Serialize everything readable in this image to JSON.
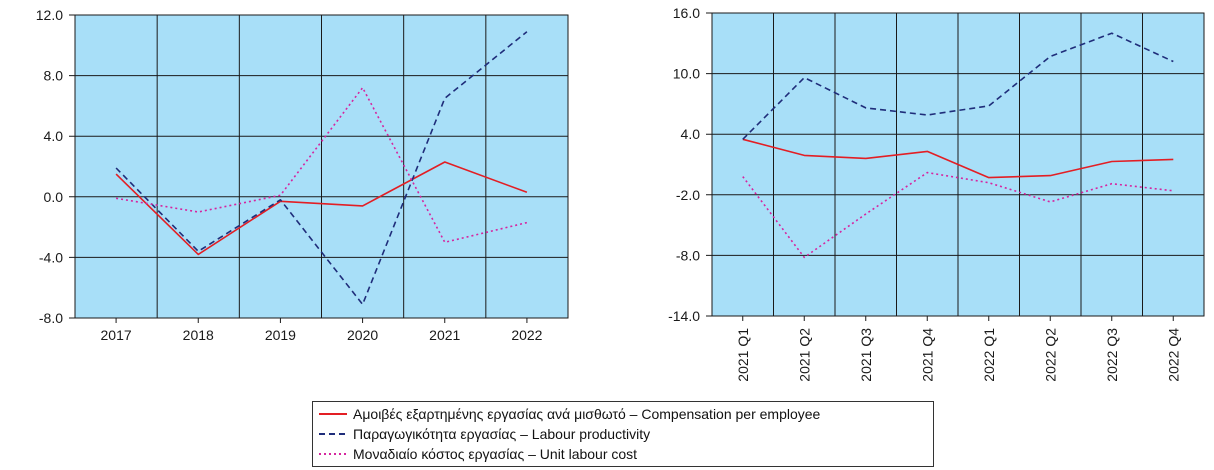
{
  "colors": {
    "plot_bg": "#a8dff8",
    "grid": "#1a1a1a",
    "compensation": "#e31e24",
    "productivity": "#1f2d7a",
    "unit_labour_cost": "#d6249f"
  },
  "chart_data": [
    {
      "type": "line",
      "title": "",
      "xlabel": "",
      "ylabel": "",
      "categories": [
        "2017",
        "2018",
        "2019",
        "2020",
        "2021",
        "2022"
      ],
      "ylim": [
        -8,
        12
      ],
      "yticks": [
        "12.0",
        "8.0",
        "4.0",
        "0.0",
        "-4.0",
        "-8.0"
      ],
      "grid": true,
      "series": [
        {
          "name": "Αμοιβές εξαρτημένης εργασίας ανά μισθωτό – Compensation per employee",
          "style": "solid",
          "values": [
            1.5,
            -3.8,
            -0.3,
            -0.6,
            2.3,
            0.3
          ]
        },
        {
          "name": "Παραγωγικότητα εργασίας – Labour productivity",
          "style": "dashed",
          "values": [
            1.9,
            -3.6,
            -0.2,
            -7.1,
            6.5,
            10.9
          ]
        },
        {
          "name": "Μοναδιαίο κόστος εργασίας – Unit labour cost",
          "style": "dotted",
          "values": [
            -0.1,
            -1.0,
            0.1,
            7.2,
            -3.0,
            -1.7
          ]
        }
      ]
    },
    {
      "type": "line",
      "title": "",
      "xlabel": "",
      "ylabel": "",
      "categories": [
        "2021 Q1",
        "2021 Q2",
        "2021 Q3",
        "2021 Q4",
        "2022 Q1",
        "2022 Q2",
        "2022 Q3",
        "2022 Q4"
      ],
      "ylim": [
        -14,
        16
      ],
      "yticks": [
        "16.0",
        "10.0",
        "4.0",
        "-2.0",
        "-8.0",
        "-14.0"
      ],
      "grid": true,
      "series": [
        {
          "name": "Αμοιβές εξαρτημένης εργασίας ανά μισθωτό – Compensation per employee",
          "style": "solid",
          "values": [
            3.5,
            1.9,
            1.6,
            2.3,
            -0.3,
            -0.1,
            1.3,
            1.5
          ]
        },
        {
          "name": "Παραγωγικότητα εργασίας – Labour productivity",
          "style": "dashed",
          "values": [
            3.5,
            9.6,
            6.6,
            5.9,
            6.8,
            11.7,
            14.0,
            11.2
          ]
        },
        {
          "name": "Μοναδιαίο κόστος εργασίας – Unit labour cost",
          "style": "dotted",
          "values": [
            -0.2,
            -8.2,
            -3.9,
            0.2,
            -0.8,
            -2.7,
            -0.9,
            -1.6
          ]
        }
      ]
    }
  ],
  "legend": {
    "items": [
      {
        "label": "Αμοιβές εξαρτημένης εργασίας ανά μισθωτό – Compensation per employee",
        "style": "solid"
      },
      {
        "label": "Παραγωγικότητα εργασίας – Labour productivity",
        "style": "dashed"
      },
      {
        "label": "Μοναδιαίο κόστος εργασίας – Unit labour cost",
        "style": "dotted"
      }
    ]
  }
}
